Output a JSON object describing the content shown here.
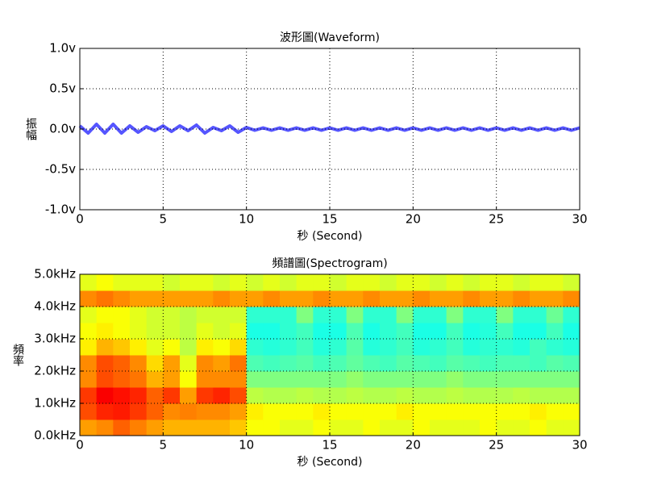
{
  "chart_data": [
    {
      "type": "line",
      "title": "波形圖(Waveform)",
      "xlabel": "秒 (Second)",
      "ylabel": "振幅",
      "xlim": [
        0,
        30
      ],
      "ylim": [
        -1,
        1
      ],
      "xticks": [
        0,
        5,
        10,
        15,
        20,
        25,
        30
      ],
      "yticks": [
        {
          "value": -1,
          "label": "-1.0v"
        },
        {
          "value": -0.5,
          "label": "-0.5v"
        },
        {
          "value": 0,
          "label": "0.0v"
        },
        {
          "value": 0.5,
          "label": "0.5v"
        },
        {
          "value": 1,
          "label": "1.0v"
        }
      ],
      "grid": true,
      "series": [
        {
          "color": "#5555ff",
          "x": [
            0,
            0.5,
            1,
            1.5,
            2,
            2.5,
            3,
            3.5,
            4,
            4.5,
            5,
            5.5,
            6,
            6.5,
            7,
            7.5,
            8,
            8.5,
            9,
            9.5,
            10,
            10.5,
            11,
            11.5,
            12,
            12.5,
            13,
            13.5,
            14,
            14.5,
            15,
            15.5,
            16,
            16.5,
            17,
            17.5,
            18,
            18.5,
            19,
            19.5,
            20,
            20.5,
            21,
            21.5,
            22,
            22.5,
            23,
            23.5,
            24,
            24.5,
            25,
            25.5,
            26,
            26.5,
            27,
            27.5,
            28,
            28.5,
            29,
            29.5,
            30
          ],
          "values": [
            0.04,
            -0.05,
            0.06,
            -0.05,
            0.06,
            -0.05,
            0.04,
            -0.04,
            0.03,
            -0.02,
            0.04,
            -0.03,
            0.04,
            -0.02,
            0.05,
            -0.05,
            0.02,
            -0.02,
            0.04,
            -0.04,
            0.02,
            -0.015,
            0.015,
            -0.015,
            0.015,
            -0.015,
            0.015,
            -0.015,
            0.015,
            -0.015,
            0.015,
            -0.015,
            0.015,
            -0.015,
            0.015,
            -0.015,
            0.015,
            -0.015,
            0.015,
            -0.015,
            0.015,
            -0.015,
            0.015,
            -0.015,
            0.015,
            -0.015,
            0.015,
            -0.015,
            0.015,
            -0.015,
            0.015,
            -0.015,
            0.015,
            -0.015,
            0.015,
            -0.015,
            0.015,
            -0.015,
            0.015,
            -0.015,
            0.015
          ]
        }
      ]
    },
    {
      "type": "heatmap",
      "title": "頻譜圖(Spectrogram)",
      "xlabel": "秒 (Second)",
      "ylabel": "頻率",
      "xlim": [
        0,
        30
      ],
      "ylim": [
        0,
        5
      ],
      "colormap": "jet",
      "xticks": [
        0,
        5,
        10,
        15,
        20,
        25,
        30
      ],
      "yticks": [
        {
          "value": 0,
          "label": "0.0kHz"
        },
        {
          "value": 1,
          "label": "1.0kHz"
        },
        {
          "value": 2,
          "label": "2.0kHz"
        },
        {
          "value": 3,
          "label": "3.0kHz"
        },
        {
          "value": 4,
          "label": "4.0kHz"
        },
        {
          "value": 5,
          "label": "5.0kHz"
        }
      ],
      "grid": true,
      "z": [
        [
          0.72,
          0.74,
          0.78,
          0.75,
          0.72,
          0.7,
          0.7,
          0.7,
          0.7,
          0.68,
          0.62,
          0.62,
          0.6,
          0.6,
          0.62,
          0.6,
          0.6,
          0.62,
          0.6,
          0.6,
          0.62,
          0.6,
          0.6,
          0.6,
          0.62,
          0.6,
          0.6,
          0.62,
          0.6,
          0.6
        ],
        [
          0.8,
          0.84,
          0.85,
          0.82,
          0.78,
          0.74,
          0.75,
          0.74,
          0.74,
          0.72,
          0.64,
          0.62,
          0.62,
          0.62,
          0.64,
          0.62,
          0.62,
          0.62,
          0.62,
          0.64,
          0.62,
          0.62,
          0.62,
          0.62,
          0.62,
          0.62,
          0.62,
          0.64,
          0.62,
          0.62
        ],
        [
          0.82,
          0.88,
          0.86,
          0.84,
          0.78,
          0.82,
          0.72,
          0.82,
          0.84,
          0.8,
          0.56,
          0.55,
          0.55,
          0.56,
          0.55,
          0.55,
          0.56,
          0.55,
          0.55,
          0.56,
          0.55,
          0.55,
          0.56,
          0.55,
          0.55,
          0.55,
          0.56,
          0.55,
          0.55,
          0.55
        ],
        [
          0.74,
          0.8,
          0.78,
          0.76,
          0.7,
          0.72,
          0.62,
          0.74,
          0.74,
          0.74,
          0.5,
          0.5,
          0.5,
          0.5,
          0.5,
          0.5,
          0.52,
          0.5,
          0.5,
          0.5,
          0.5,
          0.5,
          0.52,
          0.5,
          0.5,
          0.5,
          0.5,
          0.5,
          0.5,
          0.5
        ],
        [
          0.74,
          0.8,
          0.78,
          0.74,
          0.66,
          0.72,
          0.6,
          0.74,
          0.72,
          0.76,
          0.45,
          0.44,
          0.45,
          0.46,
          0.44,
          0.45,
          0.47,
          0.45,
          0.44,
          0.46,
          0.45,
          0.44,
          0.46,
          0.45,
          0.44,
          0.45,
          0.45,
          0.44,
          0.46,
          0.45
        ],
        [
          0.64,
          0.7,
          0.68,
          0.64,
          0.6,
          0.62,
          0.56,
          0.64,
          0.62,
          0.66,
          0.42,
          0.41,
          0.42,
          0.44,
          0.41,
          0.42,
          0.46,
          0.41,
          0.42,
          0.44,
          0.41,
          0.42,
          0.44,
          0.41,
          0.42,
          0.42,
          0.41,
          0.44,
          0.42,
          0.41
        ],
        [
          0.62,
          0.64,
          0.62,
          0.6,
          0.58,
          0.58,
          0.56,
          0.6,
          0.58,
          0.6,
          0.4,
          0.4,
          0.42,
          0.44,
          0.4,
          0.4,
          0.45,
          0.4,
          0.42,
          0.44,
          0.4,
          0.4,
          0.44,
          0.4,
          0.41,
          0.44,
          0.4,
          0.4,
          0.44,
          0.4
        ],
        [
          0.6,
          0.62,
          0.62,
          0.6,
          0.58,
          0.58,
          0.56,
          0.58,
          0.58,
          0.58,
          0.42,
          0.42,
          0.42,
          0.5,
          0.42,
          0.42,
          0.5,
          0.42,
          0.42,
          0.5,
          0.42,
          0.42,
          0.5,
          0.42,
          0.42,
          0.5,
          0.42,
          0.42,
          0.48,
          0.42
        ],
        [
          0.74,
          0.76,
          0.74,
          0.72,
          0.72,
          0.72,
          0.72,
          0.72,
          0.74,
          0.72,
          0.72,
          0.74,
          0.72,
          0.72,
          0.74,
          0.72,
          0.72,
          0.74,
          0.72,
          0.72,
          0.74,
          0.72,
          0.72,
          0.74,
          0.72,
          0.72,
          0.74,
          0.72,
          0.72,
          0.74
        ],
        [
          0.6,
          0.62,
          0.6,
          0.6,
          0.6,
          0.58,
          0.6,
          0.6,
          0.58,
          0.6,
          0.58,
          0.6,
          0.58,
          0.6,
          0.6,
          0.58,
          0.6,
          0.6,
          0.58,
          0.6,
          0.6,
          0.58,
          0.6,
          0.58,
          0.6,
          0.6,
          0.58,
          0.6,
          0.6,
          0.58
        ]
      ]
    }
  ]
}
